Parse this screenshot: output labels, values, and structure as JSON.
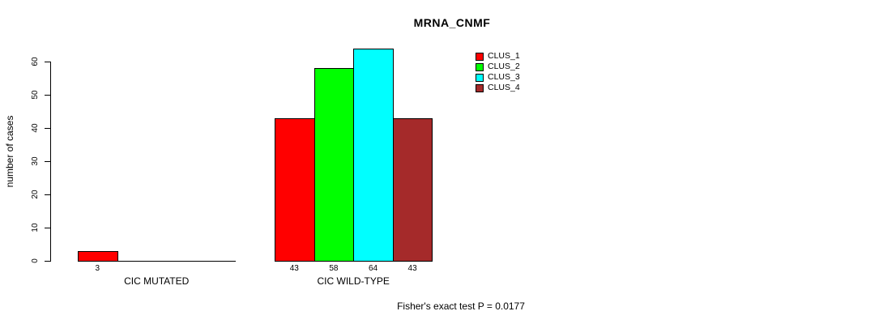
{
  "chart_data": {
    "type": "bar",
    "title": "MRNA_CNMF",
    "xlabel": "",
    "ylabel": "number of cases",
    "categories": [
      "CIC MUTATED",
      "CIC WILD-TYPE"
    ],
    "series": [
      {
        "name": "CLUS_1",
        "color": "#FF0000",
        "values": [
          3,
          43
        ]
      },
      {
        "name": "CLUS_2",
        "color": "#00FF00",
        "values": [
          0,
          58
        ]
      },
      {
        "name": "CLUS_3",
        "color": "#00FFFF",
        "values": [
          0,
          64
        ]
      },
      {
        "name": "CLUS_4",
        "color": "#A52A2A",
        "values": [
          0,
          43
        ]
      }
    ],
    "bar_value_labels": [
      [
        "3",
        "",
        "",
        ""
      ],
      [
        "43",
        "58",
        "64",
        "43"
      ]
    ],
    "ylim": [
      0,
      60
    ],
    "yticks": [
      "0",
      "10",
      "20",
      "30",
      "40",
      "50",
      "60"
    ],
    "grid": false,
    "legend_position": "top-right",
    "annotation": "Fisher's exact test P = 0.0177"
  }
}
